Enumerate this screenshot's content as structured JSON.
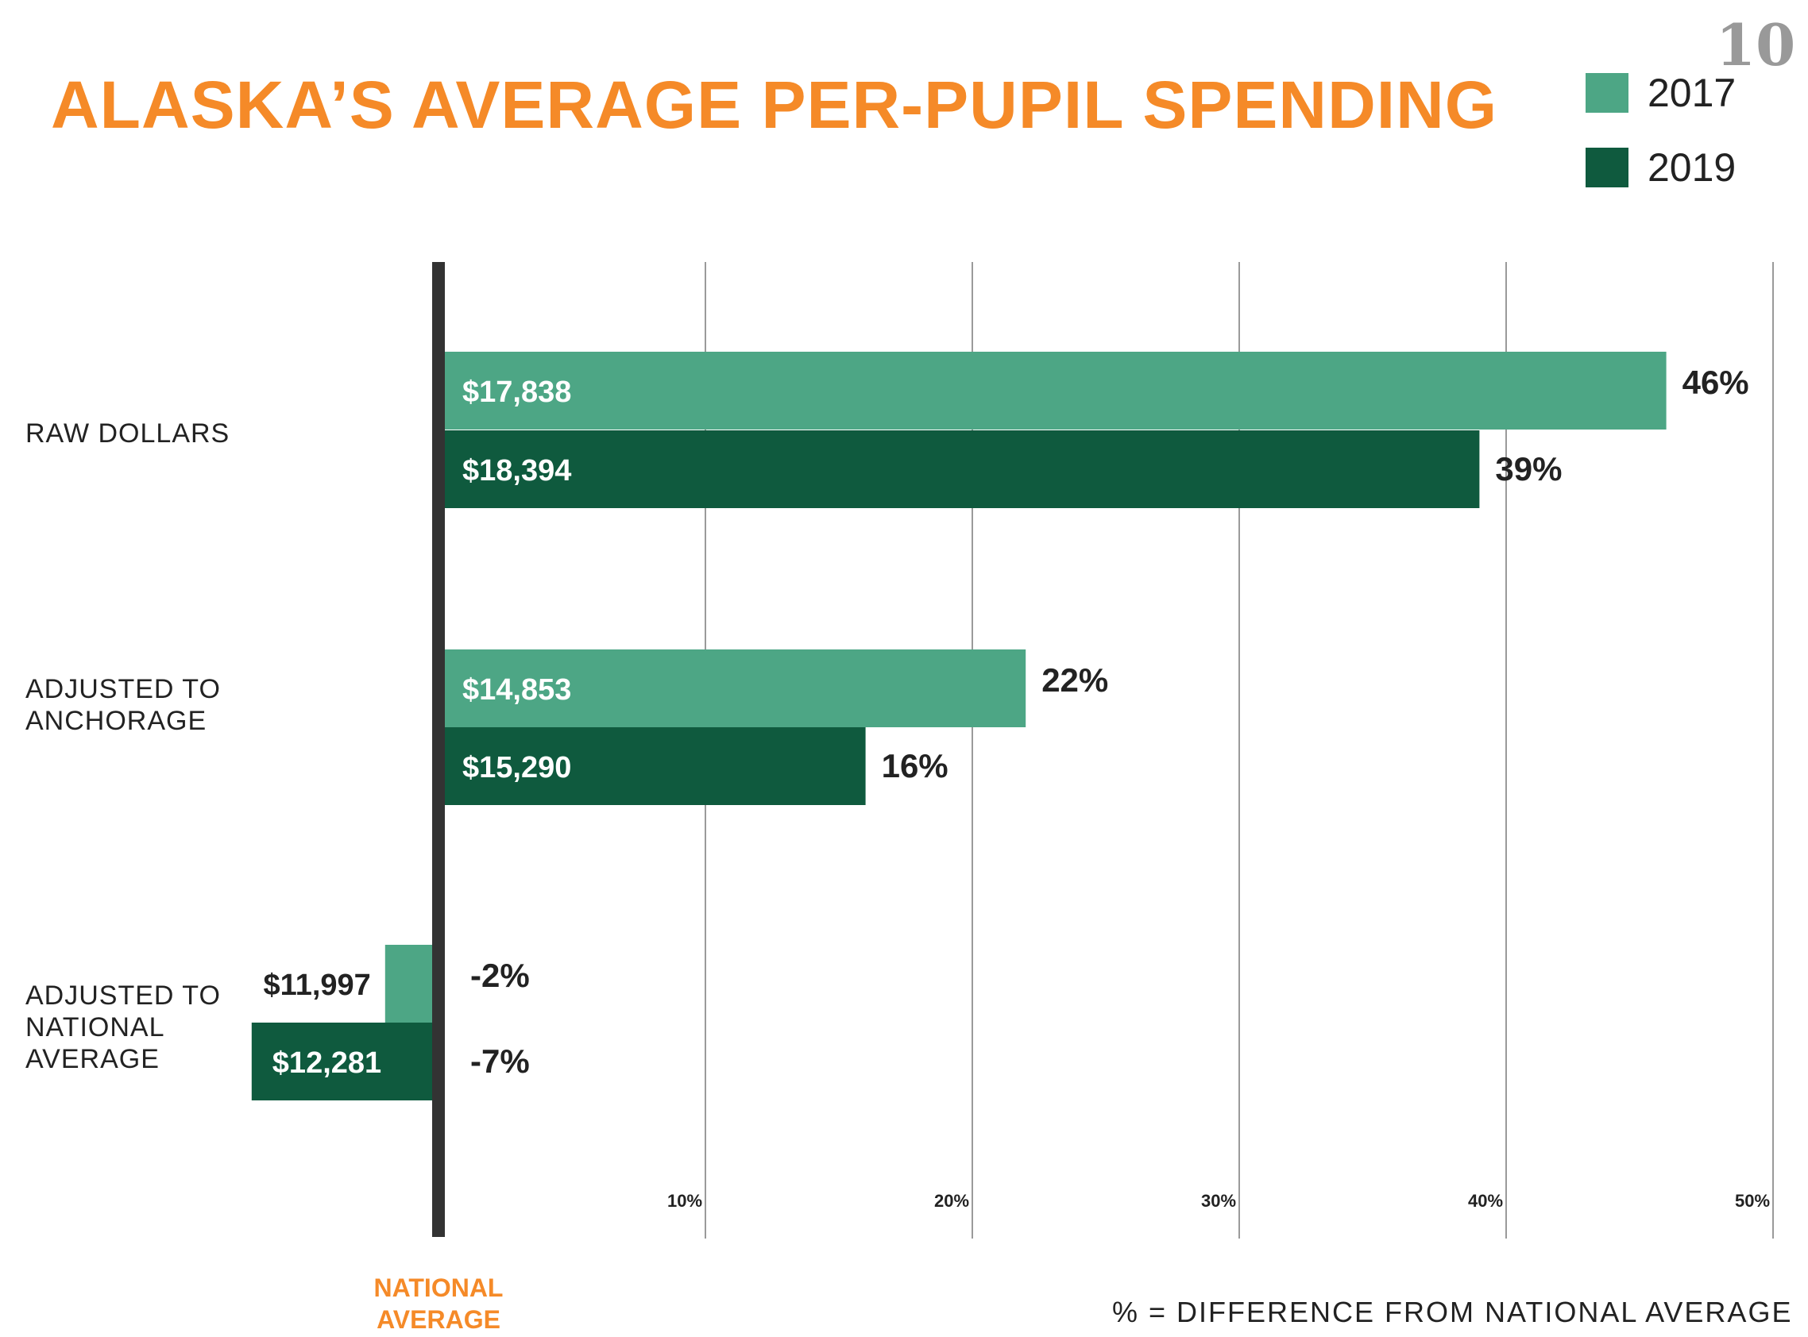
{
  "page_number": "10",
  "colors": {
    "series_2017": "#4da685",
    "series_2019": "#0f5a3e",
    "title": "#f58a28",
    "baseline": "#333333",
    "grid": "#9a9a9a"
  },
  "chart_data": {
    "type": "bar",
    "orientation": "horizontal",
    "title": "ALASKA’S AVERAGE PER-PUPIL SPENDING",
    "categories": [
      "RAW DOLLARS",
      "ADJUSTED TO ANCHORAGE",
      "ADJUSTED TO NATIONAL AVERAGE"
    ],
    "category_lines": [
      [
        "RAW DOLLARS"
      ],
      [
        "ADJUSTED TO",
        "ANCHORAGE"
      ],
      [
        "ADJUSTED TO",
        "NATIONAL",
        "AVERAGE"
      ]
    ],
    "series": [
      {
        "name": "2017",
        "values": [
          46,
          22,
          -2
        ],
        "pct_labels": [
          "46%",
          "22%",
          "-2%"
        ],
        "dollar_labels": [
          "$17,838",
          "$14,853",
          "$11,997"
        ]
      },
      {
        "name": "2019",
        "values": [
          39,
          16,
          -7
        ],
        "pct_labels": [
          "39%",
          "16%",
          "-7%"
        ],
        "dollar_labels": [
          "$18,394",
          "$15,290",
          "$12,281"
        ]
      }
    ],
    "xlim": [
      -7,
      50
    ],
    "xticks": [
      10,
      20,
      30,
      40,
      50
    ],
    "xtick_labels": [
      "10%",
      "20%",
      "30%",
      "40%",
      "50%"
    ],
    "baseline_label": "NATIONAL AVERAGE",
    "baseline_label_lines": [
      "NATIONAL",
      "AVERAGE"
    ],
    "xlabel": "% = DIFFERENCE FROM NATIONAL AVERAGE",
    "grid": true,
    "legend_position": "top-right"
  }
}
